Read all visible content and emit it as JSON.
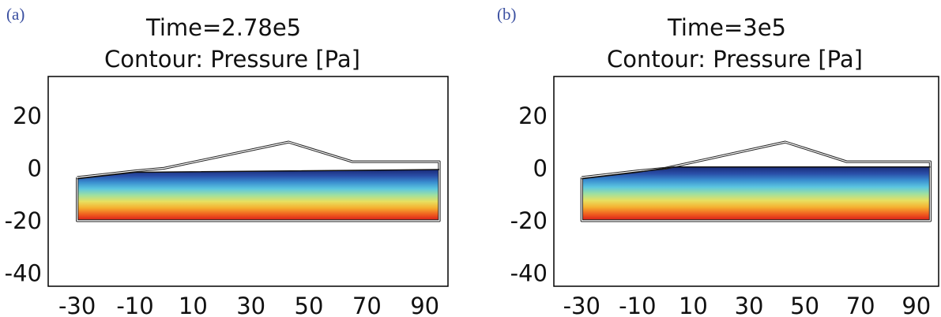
{
  "chart_data": [
    {
      "panel_label": "(a)",
      "type": "contour",
      "title": "Time=2.78e5",
      "subtitle": "Contour: Pressure [Pa]",
      "xlabel": "",
      "ylabel": "",
      "xlim": [
        -40,
        98
      ],
      "ylim": [
        -45,
        35
      ],
      "xticks": [
        -30,
        -10,
        10,
        30,
        50,
        70,
        90
      ],
      "yticks": [
        20,
        0,
        -20,
        -40
      ],
      "domain_outline": [
        [
          -30,
          -3.5
        ],
        [
          -10,
          -1
        ],
        [
          0,
          0
        ],
        [
          43,
          10
        ],
        [
          65,
          2.5
        ],
        [
          95,
          2.5
        ],
        [
          95,
          -20
        ],
        [
          -30,
          -20
        ],
        [
          -30,
          -3.5
        ]
      ],
      "filled_region_top": [
        [
          -30,
          -4
        ],
        [
          -10,
          -1.5
        ],
        [
          -5,
          -1.5
        ],
        [
          95,
          -0.5
        ]
      ],
      "filled_region_bottom": -20,
      "colormap": [
        "#1a2a78",
        "#2a4fa8",
        "#3a8fd0",
        "#5cc6e0",
        "#9ee0a0",
        "#e8e060",
        "#f5b030",
        "#f06020",
        "#d81818"
      ]
    },
    {
      "panel_label": "(b)",
      "type": "contour",
      "title": "Time=3e5",
      "subtitle": "Contour: Pressure [Pa]",
      "xlabel": "",
      "ylabel": "",
      "xlim": [
        -40,
        98
      ],
      "ylim": [
        -45,
        35
      ],
      "xticks": [
        -30,
        -10,
        10,
        30,
        50,
        70,
        90
      ],
      "yticks": [
        20,
        0,
        -20,
        -40
      ],
      "domain_outline": [
        [
          -30,
          -3.5
        ],
        [
          -10,
          -1
        ],
        [
          0,
          0
        ],
        [
          43,
          10
        ],
        [
          65,
          2.5
        ],
        [
          95,
          2.5
        ],
        [
          95,
          -20
        ],
        [
          -30,
          -20
        ],
        [
          -30,
          -3.5
        ]
      ],
      "filled_region_top": [
        [
          -30,
          -4
        ],
        [
          -10,
          -1.5
        ],
        [
          3,
          0.5
        ],
        [
          95,
          0.5
        ]
      ],
      "filled_region_bottom": -20,
      "colormap": [
        "#1a2a78",
        "#2a4fa8",
        "#3a8fd0",
        "#5cc6e0",
        "#9ee0a0",
        "#e8e060",
        "#f5b030",
        "#f06020",
        "#d81818"
      ]
    }
  ]
}
